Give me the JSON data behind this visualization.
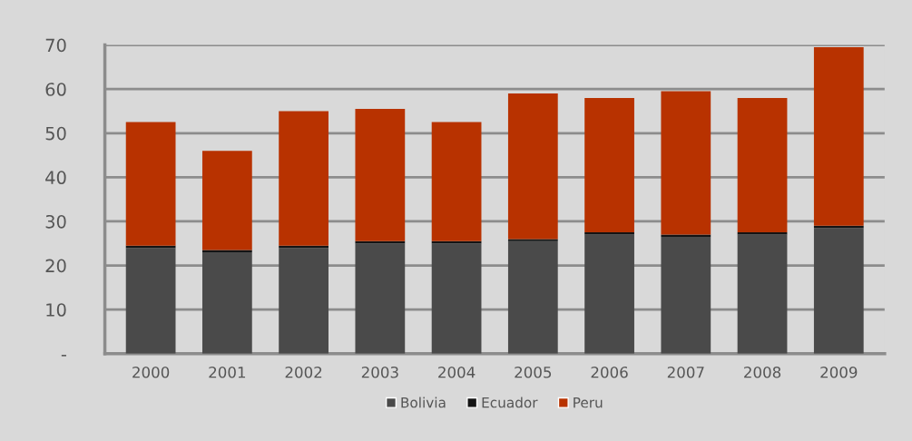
{
  "chart_data": {
    "type": "bar",
    "stacked": true,
    "categories": [
      "2000",
      "2001",
      "2002",
      "2003",
      "2004",
      "2005",
      "2006",
      "2007",
      "2008",
      "2009"
    ],
    "series": [
      {
        "name": "Bolivia",
        "color": "#4a4a4a",
        "values": [
          24,
          23,
          24,
          25,
          25,
          25.5,
          27,
          26.5,
          27,
          28.5
        ]
      },
      {
        "name": "Ecuador",
        "color": "#141414",
        "values": [
          0.5,
          0.5,
          0.5,
          0.5,
          0.5,
          0.5,
          0.5,
          0.5,
          0.5,
          0.5
        ]
      },
      {
        "name": "Peru",
        "color": "#b83200",
        "values": [
          28,
          22.5,
          30.5,
          30,
          27,
          33,
          30.5,
          32.5,
          30.5,
          40.5
        ]
      }
    ],
    "ylim": [
      0,
      70
    ],
    "yticks": [
      {
        "value": 0,
        "label": "-"
      },
      10,
      20,
      30,
      40,
      50,
      60,
      70
    ],
    "grid": "y",
    "legend": "bottom"
  }
}
